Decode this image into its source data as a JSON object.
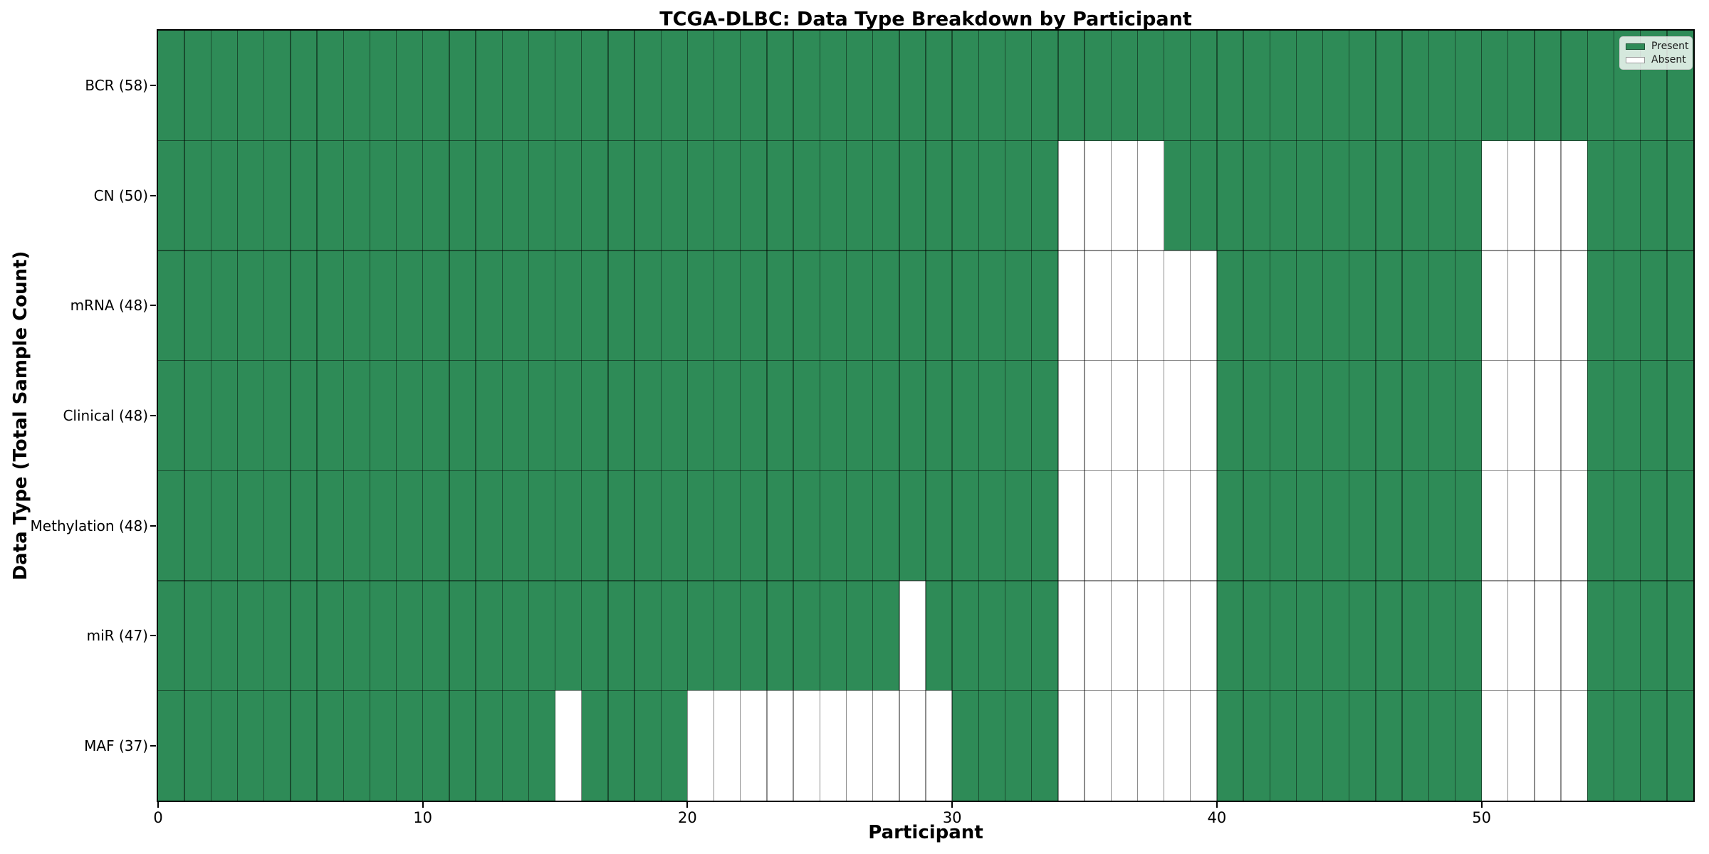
{
  "colors": {
    "present": "#2e8b57",
    "absent": "#ffffff",
    "grid": "rgba(0,0,0,0.45)",
    "spine": "#000000",
    "legend_border": "#cccccc",
    "legend_bg": "rgba(255,255,255,0.8)"
  },
  "chart_data": {
    "type": "heatmap",
    "title": "TCGA-DLBC: Data Type Breakdown by Participant",
    "xlabel": "Participant",
    "ylabel": "Data Type (Total Sample Count)",
    "n_participants": 58,
    "x_ticks": [
      0,
      10,
      20,
      30,
      40,
      50
    ],
    "x_range": [
      0,
      58
    ],
    "grid": true,
    "legend_position": "upper right",
    "legend_items": [
      {
        "label": "Present",
        "color": "#2e8b57"
      },
      {
        "label": "Absent",
        "color": "#ffffff"
      }
    ],
    "rows": [
      {
        "label": "BCR (58)",
        "data_type": "BCR",
        "total_samples": 58,
        "absent_participants": []
      },
      {
        "label": "CN (50)",
        "data_type": "CN",
        "total_samples": 50,
        "absent_participants": [
          34,
          35,
          36,
          37,
          50,
          51,
          52,
          53
        ]
      },
      {
        "label": "mRNA (48)",
        "data_type": "mRNA",
        "total_samples": 48,
        "absent_participants": [
          34,
          35,
          36,
          37,
          38,
          39,
          50,
          51,
          52,
          53
        ]
      },
      {
        "label": "Clinical (48)",
        "data_type": "Clinical",
        "total_samples": 48,
        "absent_participants": [
          34,
          35,
          36,
          37,
          38,
          39,
          50,
          51,
          52,
          53
        ]
      },
      {
        "label": "Methylation (48)",
        "data_type": "Methylation",
        "total_samples": 48,
        "absent_participants": [
          34,
          35,
          36,
          37,
          38,
          39,
          50,
          51,
          52,
          53
        ]
      },
      {
        "label": "miR (47)",
        "data_type": "miR",
        "total_samples": 47,
        "absent_participants": [
          28,
          34,
          35,
          36,
          37,
          38,
          39,
          50,
          51,
          52,
          53
        ]
      },
      {
        "label": "MAF (37)",
        "data_type": "MAF",
        "total_samples": 37,
        "absent_participants": [
          15,
          20,
          21,
          22,
          23,
          24,
          25,
          26,
          27,
          28,
          29,
          34,
          35,
          36,
          37,
          38,
          39,
          50,
          51,
          52,
          53
        ]
      }
    ]
  }
}
